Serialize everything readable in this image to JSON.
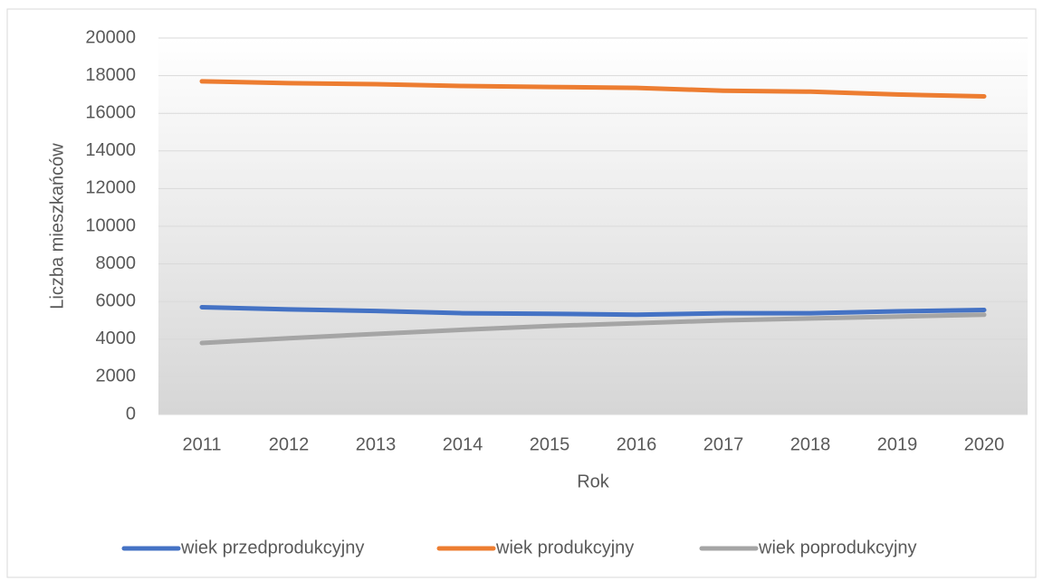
{
  "chart_data": {
    "type": "line",
    "xlabel": "Rok",
    "ylabel": "Liczba mieszkańców",
    "categories": [
      "2011",
      "2012",
      "2013",
      "2014",
      "2015",
      "2016",
      "2017",
      "2018",
      "2019",
      "2020"
    ],
    "series": [
      {
        "name": "wiek przedprodukcyjny",
        "color": "#4472c4",
        "values": [
          5700,
          5580,
          5500,
          5380,
          5350,
          5300,
          5380,
          5380,
          5480,
          5550
        ]
      },
      {
        "name": "wiek produkcyjny",
        "color": "#ed7d31",
        "values": [
          17700,
          17600,
          17550,
          17450,
          17400,
          17350,
          17200,
          17150,
          17000,
          16900
        ]
      },
      {
        "name": "wiek poprodukcyjny",
        "color": "#a5a5a5",
        "values": [
          3800,
          4050,
          4280,
          4500,
          4700,
          4850,
          5000,
          5100,
          5200,
          5300
        ]
      }
    ],
    "ylim": [
      0,
      20000
    ],
    "yticks": [
      0,
      2000,
      4000,
      6000,
      8000,
      10000,
      12000,
      14000,
      16000,
      18000,
      20000
    ],
    "grid": true,
    "legend": "bottom"
  }
}
